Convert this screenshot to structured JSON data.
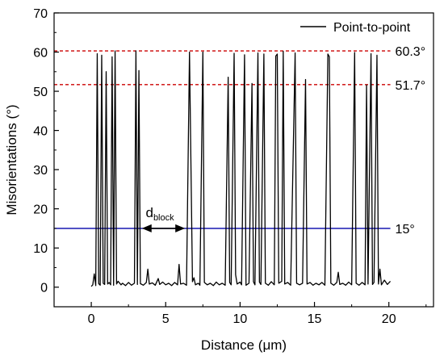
{
  "chart_data": {
    "type": "line",
    "xlabel": "Distance (μm)",
    "ylabel": "Misorientations (°)",
    "xlim": [
      -2.5,
      23
    ],
    "ylim": [
      -5,
      70
    ],
    "xticks": [
      "0",
      "5",
      "10",
      "15",
      "20"
    ],
    "yticks": [
      "0",
      "10",
      "20",
      "30",
      "40",
      "50",
      "60",
      "70"
    ],
    "legend": {
      "position": "top-right",
      "entries": [
        "Point-to-point"
      ]
    },
    "series": [
      {
        "name": "Point-to-point",
        "color": "#000000",
        "points": [
          [
            0.0,
            0.2
          ],
          [
            0.1,
            0.6
          ],
          [
            0.2,
            3.4
          ],
          [
            0.3,
            0.4
          ],
          [
            0.4,
            59.6
          ],
          [
            0.5,
            0.9
          ],
          [
            0.6,
            0.5
          ],
          [
            0.7,
            59.2
          ],
          [
            0.8,
            1.0
          ],
          [
            0.9,
            0.7
          ],
          [
            1.0,
            55.0
          ],
          [
            1.1,
            0.8
          ],
          [
            1.2,
            1.2
          ],
          [
            1.3,
            0.6
          ],
          [
            1.4,
            58.8
          ],
          [
            1.5,
            0.5
          ],
          [
            1.6,
            60.3
          ],
          [
            1.7,
            0.8
          ],
          [
            1.8,
            1.5
          ],
          [
            2.0,
            0.6
          ],
          [
            2.1,
            1.0
          ],
          [
            2.3,
            0.4
          ],
          [
            2.5,
            1.2
          ],
          [
            2.7,
            0.5
          ],
          [
            2.9,
            1.0
          ],
          [
            3.0,
            60.3
          ],
          [
            3.1,
            0.7
          ],
          [
            3.2,
            55.3
          ],
          [
            3.3,
            0.9
          ],
          [
            3.5,
            0.5
          ],
          [
            3.7,
            1.2
          ],
          [
            3.8,
            4.6
          ],
          [
            3.9,
            0.8
          ],
          [
            4.1,
            1.1
          ],
          [
            4.3,
            0.5
          ],
          [
            4.5,
            2.2
          ],
          [
            4.6,
            0.7
          ],
          [
            4.8,
            1.3
          ],
          [
            5.0,
            0.6
          ],
          [
            5.2,
            1.0
          ],
          [
            5.4,
            0.4
          ],
          [
            5.6,
            1.2
          ],
          [
            5.8,
            0.6
          ],
          [
            5.9,
            5.8
          ],
          [
            6.0,
            0.8
          ],
          [
            6.2,
            1.0
          ],
          [
            6.4,
            0.5
          ],
          [
            6.6,
            60.0
          ],
          [
            6.8,
            1.4
          ],
          [
            6.9,
            2.4
          ],
          [
            7.0,
            0.6
          ],
          [
            7.2,
            1.0
          ],
          [
            7.3,
            0.5
          ],
          [
            7.5,
            60.0
          ],
          [
            7.6,
            1.2
          ],
          [
            7.8,
            0.6
          ],
          [
            8.0,
            1.0
          ],
          [
            8.2,
            0.4
          ],
          [
            8.4,
            1.3
          ],
          [
            8.6,
            0.6
          ],
          [
            8.8,
            1.0
          ],
          [
            9.0,
            0.5
          ],
          [
            9.2,
            53.6
          ],
          [
            9.3,
            1.2
          ],
          [
            9.4,
            0.6
          ],
          [
            9.6,
            59.7
          ],
          [
            9.7,
            3.2
          ],
          [
            9.8,
            0.8
          ],
          [
            10.0,
            1.3
          ],
          [
            10.1,
            0.6
          ],
          [
            10.3,
            59.3
          ],
          [
            10.4,
            0.5
          ],
          [
            10.6,
            1.0
          ],
          [
            10.8,
            52.0
          ],
          [
            10.9,
            1.4
          ],
          [
            11.0,
            0.6
          ],
          [
            11.2,
            59.8
          ],
          [
            11.3,
            1.3
          ],
          [
            11.4,
            0.7
          ],
          [
            11.6,
            59.5
          ],
          [
            11.7,
            1.0
          ],
          [
            11.9,
            0.5
          ],
          [
            12.1,
            1.4
          ],
          [
            12.3,
            0.6
          ],
          [
            12.4,
            59.0
          ],
          [
            12.5,
            59.5
          ],
          [
            12.6,
            1.0
          ],
          [
            12.8,
            1.5
          ],
          [
            12.9,
            60.2
          ],
          [
            13.0,
            0.8
          ],
          [
            13.2,
            1.2
          ],
          [
            13.4,
            0.5
          ],
          [
            13.7,
            59.8
          ],
          [
            13.8,
            1.0
          ],
          [
            14.0,
            0.6
          ],
          [
            14.2,
            1.0
          ],
          [
            14.4,
            53.0
          ],
          [
            14.5,
            0.8
          ],
          [
            14.7,
            1.2
          ],
          [
            14.9,
            0.5
          ],
          [
            15.1,
            1.0
          ],
          [
            15.3,
            0.6
          ],
          [
            15.5,
            1.2
          ],
          [
            15.7,
            0.5
          ],
          [
            15.9,
            59.5
          ],
          [
            16.0,
            58.8
          ],
          [
            16.1,
            1.0
          ],
          [
            16.3,
            0.5
          ],
          [
            16.5,
            1.2
          ],
          [
            16.6,
            3.8
          ],
          [
            16.7,
            0.7
          ],
          [
            16.9,
            1.0
          ],
          [
            17.1,
            0.5
          ],
          [
            17.3,
            1.3
          ],
          [
            17.5,
            0.6
          ],
          [
            17.7,
            59.9
          ],
          [
            17.8,
            1.0
          ],
          [
            18.0,
            0.5
          ],
          [
            18.2,
            1.2
          ],
          [
            18.4,
            0.6
          ],
          [
            18.5,
            51.6
          ],
          [
            18.6,
            0.8
          ],
          [
            18.8,
            59.6
          ],
          [
            18.9,
            0.7
          ],
          [
            19.0,
            1.2
          ],
          [
            19.2,
            59.2
          ],
          [
            19.3,
            0.8
          ],
          [
            19.4,
            4.6
          ],
          [
            19.5,
            0.6
          ],
          [
            19.7,
            1.8
          ],
          [
            19.9,
            0.7
          ],
          [
            20.1,
            1.5
          ]
        ]
      }
    ],
    "reference_lines": [
      {
        "y": 60.3,
        "label": "60.3°",
        "color": "#cc0000",
        "style": "dashed"
      },
      {
        "y": 51.7,
        "label": "51.7°",
        "color": "#cc0000",
        "style": "dashed"
      },
      {
        "y": 15,
        "label": "15°",
        "color": "#0000aa",
        "style": "solid"
      }
    ],
    "annotation": {
      "label_main": "d",
      "label_sub": "block",
      "x_start": 3.4,
      "x_end": 6.3,
      "y": 15
    }
  }
}
